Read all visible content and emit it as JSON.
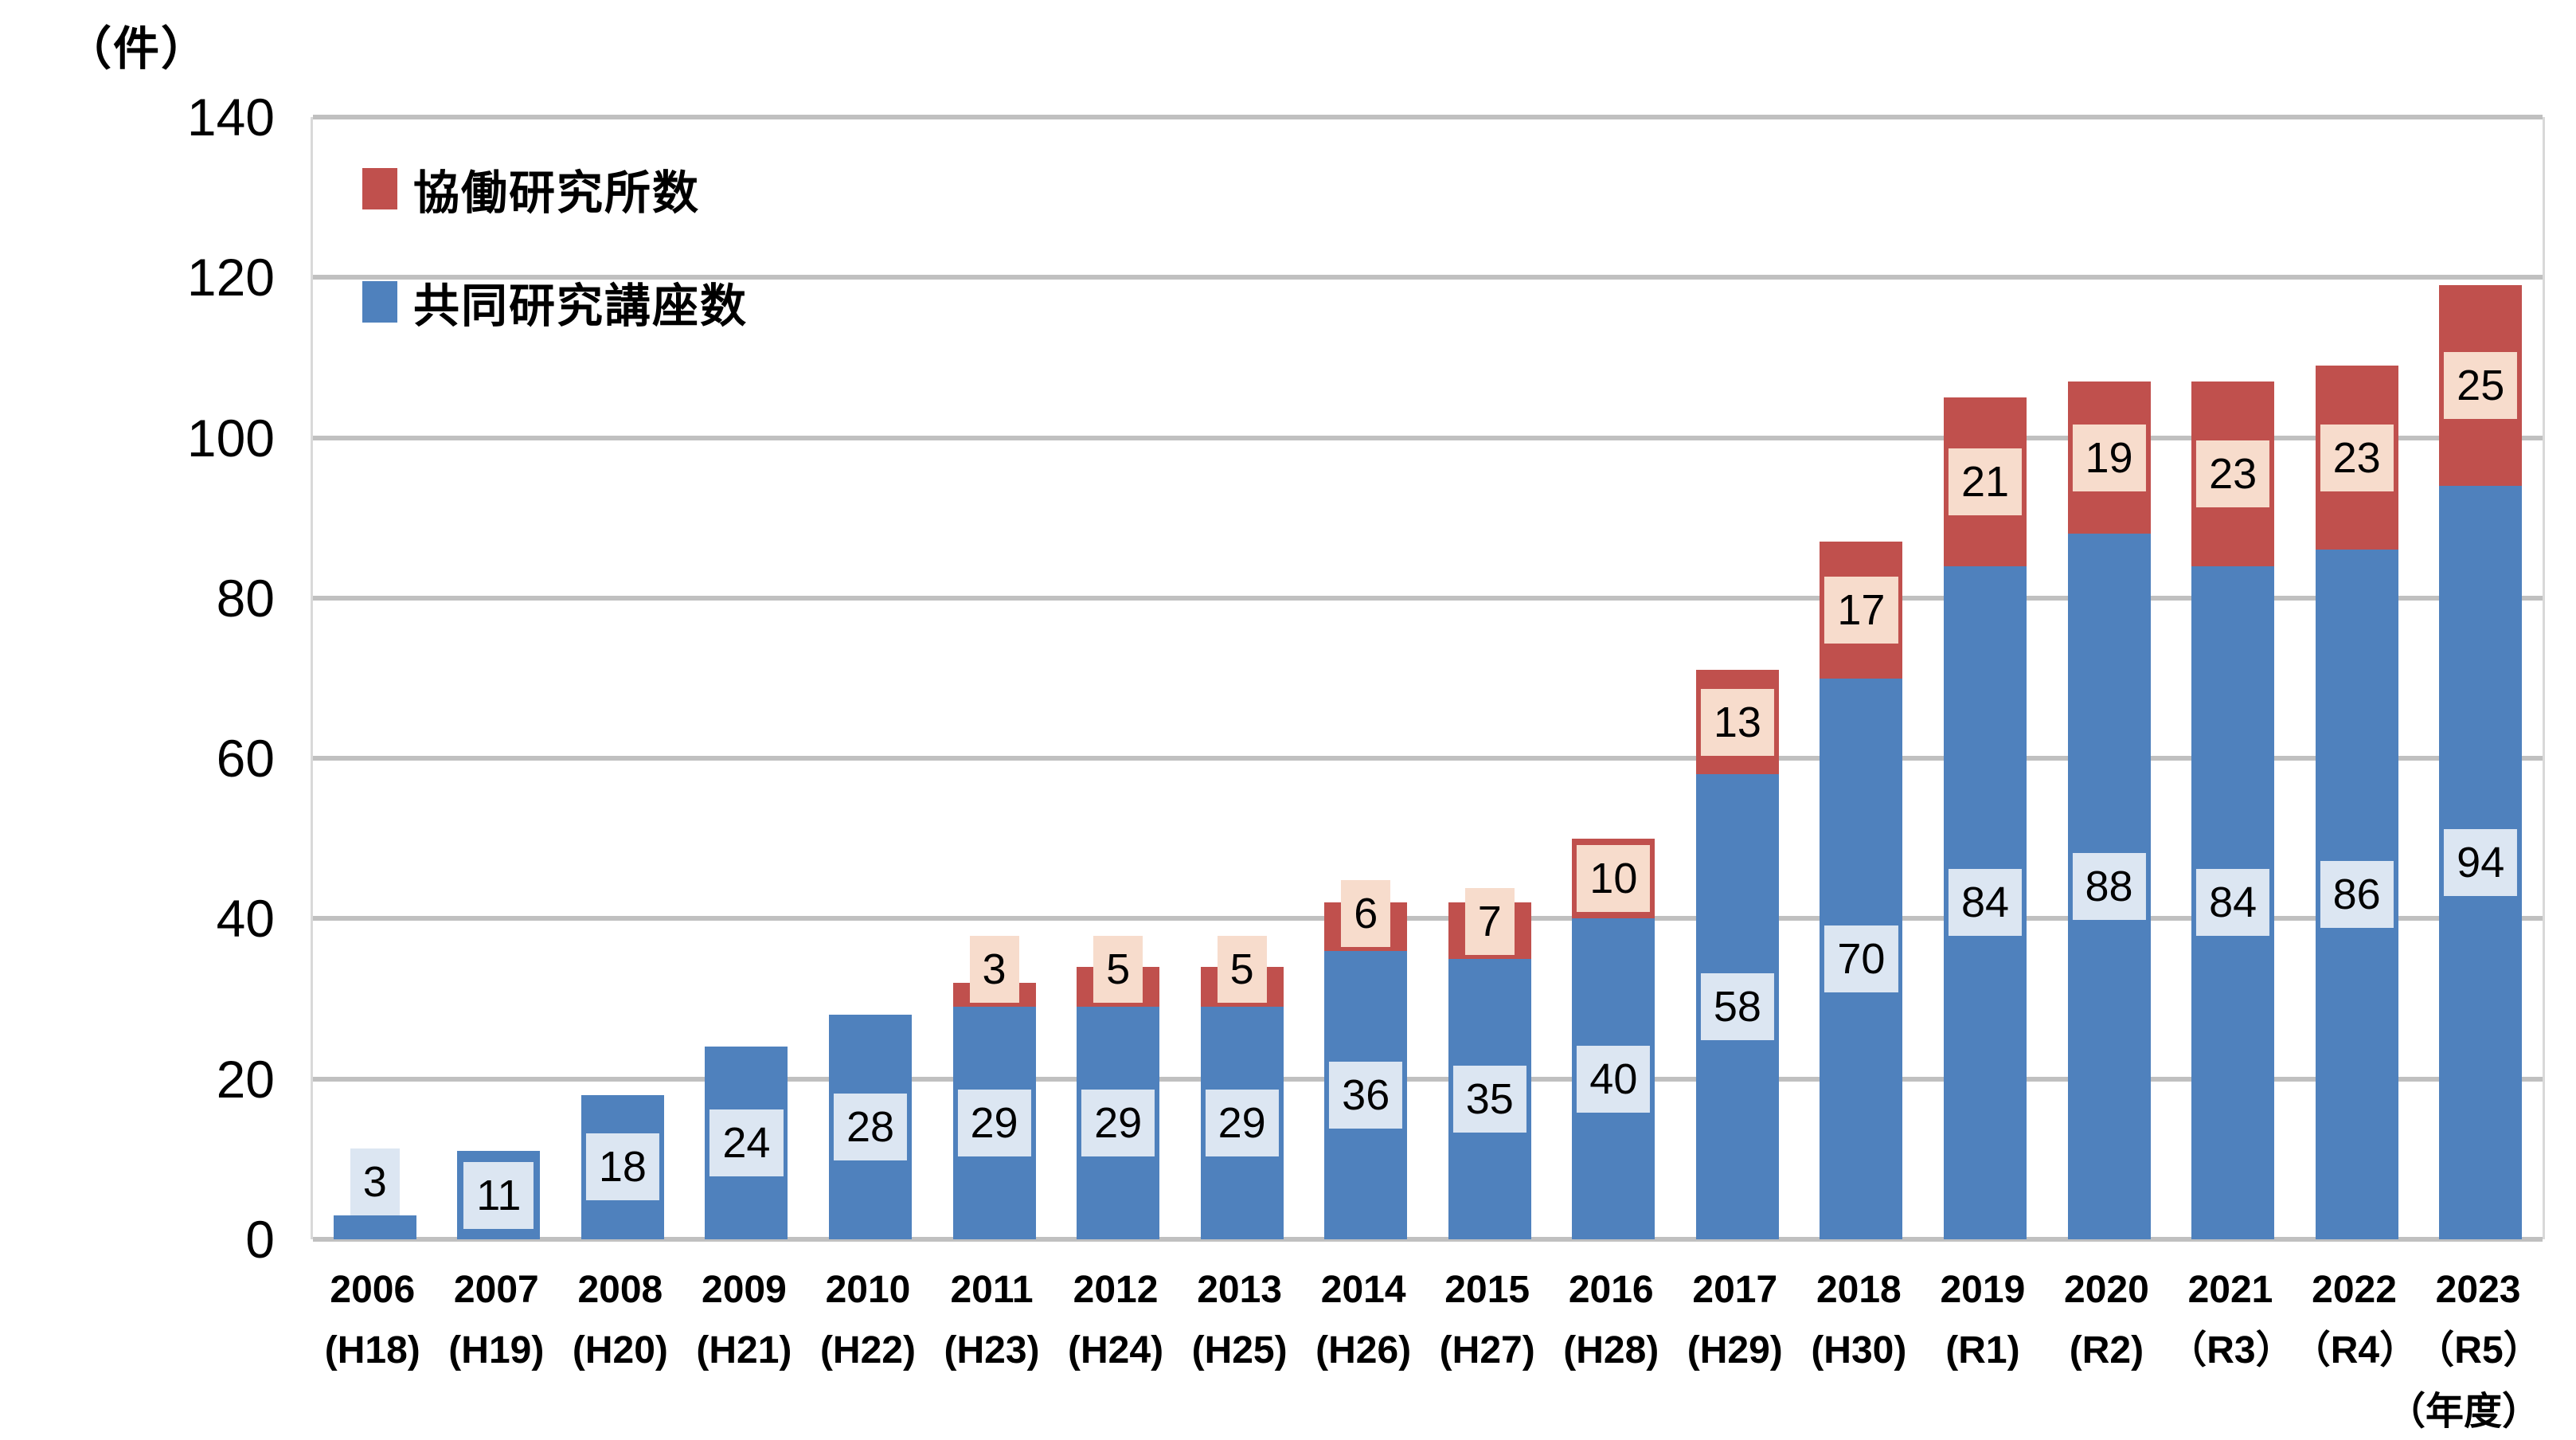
{
  "unit_label": "（件）",
  "x_axis_unit_label": "（年度）",
  "y_axis": {
    "ticks": [
      "0",
      "20",
      "40",
      "60",
      "80",
      "100",
      "120",
      "140"
    ],
    "max": 140
  },
  "legend": [
    {
      "label": "協働研究所数",
      "color": "#c0504d"
    },
    {
      "label": "共同研究講座数",
      "color": "#4f81bd"
    }
  ],
  "colors": {
    "blue_series": "#4f81bd",
    "red_series": "#c0504d",
    "blue_label_bg": "#dce6f2",
    "red_label_bg": "#f7dccc",
    "gridline": "#c0c0c0",
    "plot_border": "#d9d9d9"
  },
  "chart_data": {
    "type": "bar",
    "stacked": true,
    "title": "",
    "xlabel": "年度",
    "ylabel": "件",
    "ylim": [
      0,
      140
    ],
    "ytick_step": 20,
    "grid": true,
    "legend_position": "top-left",
    "categories": [
      {
        "year": "2006",
        "era": "(H18)"
      },
      {
        "year": "2007",
        "era": "(H19)"
      },
      {
        "year": "2008",
        "era": "(H20)"
      },
      {
        "year": "2009",
        "era": "(H21)"
      },
      {
        "year": "2010",
        "era": "(H22)"
      },
      {
        "year": "2011",
        "era": "(H23)"
      },
      {
        "year": "2012",
        "era": "(H24)"
      },
      {
        "year": "2013",
        "era": "(H25)"
      },
      {
        "year": "2014",
        "era": "(H26)"
      },
      {
        "year": "2015",
        "era": "(H27)"
      },
      {
        "year": "2016",
        "era": "(H28)"
      },
      {
        "year": "2017",
        "era": "(H29)"
      },
      {
        "year": "2018",
        "era": "(H30)"
      },
      {
        "year": "2019",
        "era": "(R1)"
      },
      {
        "year": "2020",
        "era": "(R2)"
      },
      {
        "year": "2021",
        "era": "（R3）"
      },
      {
        "year": "2022",
        "era": "（R4）"
      },
      {
        "year": "2023",
        "era": "（R5）"
      }
    ],
    "series": [
      {
        "name": "共同研究講座数",
        "color": "#4f81bd",
        "label_bg": "#dce6f2",
        "values": [
          3,
          11,
          18,
          24,
          28,
          29,
          29,
          29,
          36,
          35,
          40,
          58,
          70,
          84,
          88,
          84,
          86,
          94
        ]
      },
      {
        "name": "協働研究所数",
        "color": "#c0504d",
        "label_bg": "#f7dccc",
        "values": [
          0,
          0,
          0,
          0,
          0,
          3,
          5,
          5,
          6,
          7,
          10,
          13,
          17,
          21,
          19,
          23,
          23,
          25
        ]
      }
    ]
  }
}
